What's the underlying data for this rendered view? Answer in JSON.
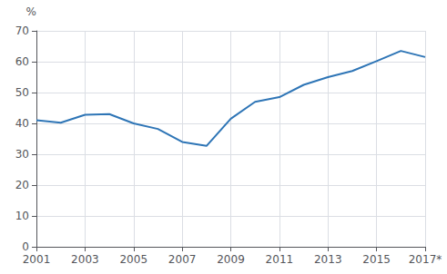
{
  "chart_data": {
    "type": "line",
    "x": [
      2001,
      2002,
      2003,
      2004,
      2005,
      2006,
      2007,
      2008,
      2009,
      2010,
      2011,
      2012,
      2013,
      2014,
      2015,
      2016,
      2017
    ],
    "values": [
      41.0,
      40.2,
      42.8,
      43.0,
      40.0,
      38.2,
      34.0,
      32.7,
      41.5,
      47.0,
      48.5,
      52.5,
      55.0,
      57.0,
      60.2,
      63.5,
      61.5
    ],
    "color": "#2e75b6",
    "xlim": [
      2001,
      2017
    ],
    "xticks": [
      2001,
      2003,
      2005,
      2007,
      2009,
      2011,
      2013,
      2015,
      {
        "value": 2017,
        "label": "2017*"
      }
    ],
    "ylim": [
      0,
      70
    ],
    "yticks": [
      0,
      10,
      20,
      30,
      40,
      50,
      60,
      70
    ],
    "ylabel": "%",
    "grid": true
  }
}
